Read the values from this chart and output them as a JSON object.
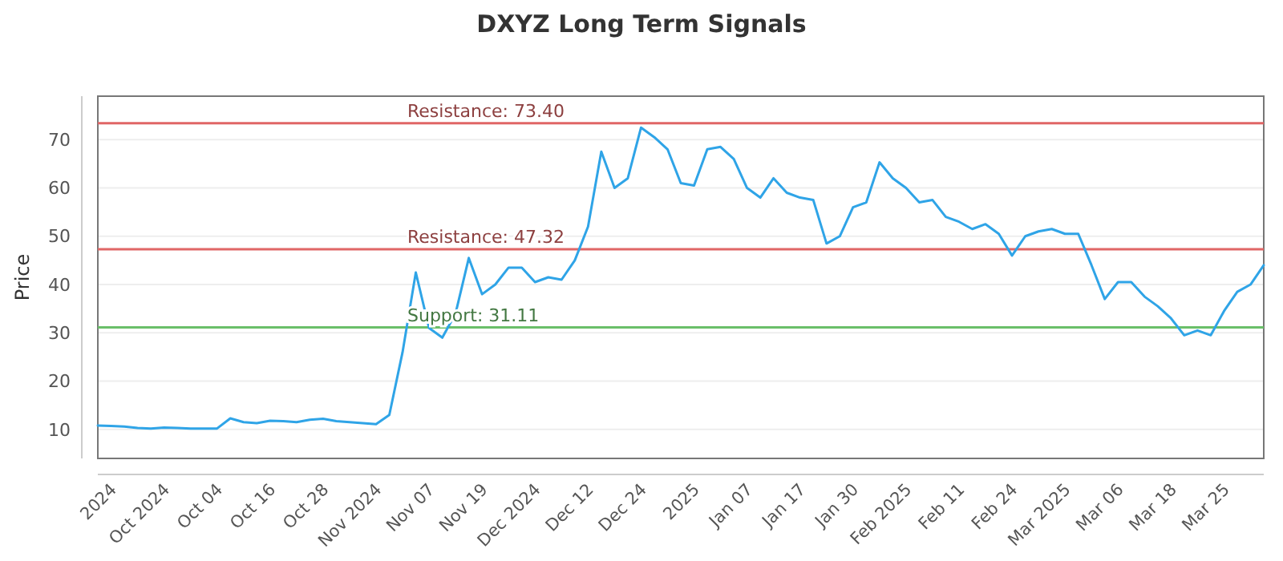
{
  "chart_data": {
    "type": "line",
    "title": "DXYZ Long Term Signals",
    "ylabel": "Price",
    "categories": [
      null,
      "2024",
      null,
      null,
      null,
      "Oct 2024",
      null,
      null,
      null,
      "Oct 04",
      null,
      null,
      null,
      "Oct 16",
      null,
      null,
      null,
      "Oct 28",
      null,
      null,
      null,
      "Nov 2024",
      null,
      null,
      null,
      "Nov 07",
      null,
      null,
      null,
      "Nov 19",
      null,
      null,
      null,
      "Dec 2024",
      null,
      null,
      null,
      "Dec 12",
      null,
      null,
      null,
      "Dec 24",
      null,
      null,
      null,
      "2025",
      null,
      null,
      null,
      "Jan 07",
      null,
      null,
      null,
      "Jan 17",
      null,
      null,
      null,
      "Jan 30",
      null,
      null,
      null,
      "Feb 2025",
      null,
      null,
      null,
      "Feb 11",
      null,
      null,
      null,
      "Feb 24",
      null,
      null,
      null,
      "Mar 2025",
      null,
      null,
      null,
      "Mar 06",
      null,
      null,
      null,
      "Mar 18",
      null,
      null,
      null,
      "Mar 25",
      null,
      null,
      null
    ],
    "series": [
      {
        "color": "#2fa4e7",
        "values": [
          10.8,
          10.7,
          10.6,
          10.3,
          10.2,
          10.4,
          10.3,
          10.2,
          10.2,
          10.2,
          12.3,
          11.5,
          11.3,
          11.8,
          11.7,
          11.5,
          12.0,
          12.2,
          11.7,
          11.5,
          11.3,
          11.1,
          13,
          26,
          42.5,
          31,
          29,
          34,
          45.5,
          38,
          40,
          43.5,
          43.5,
          40.5,
          41.5,
          41,
          45,
          52,
          67.5,
          60,
          62,
          72.5,
          70.5,
          68,
          61,
          60.5,
          68,
          68.5,
          66,
          60,
          58,
          62,
          59,
          58,
          57.5,
          48.5,
          50,
          56,
          57,
          65.3,
          62,
          60,
          57,
          57.5,
          54,
          53,
          51.5,
          52.5,
          50.5,
          46,
          50,
          51,
          51.5,
          50.5,
          50.5,
          44,
          37,
          40.5,
          40.5,
          37.5,
          35.5,
          33,
          29.5,
          30.5,
          29.5,
          34.5,
          38.5,
          40,
          44
        ]
      }
    ],
    "ylim": [
      4,
      79
    ],
    "yticks": [
      10,
      20,
      30,
      40,
      50,
      60,
      70
    ],
    "grid": "y",
    "line_style": "solid",
    "marker": "none",
    "ref_lines": [
      {
        "axis": "y",
        "value": 73.4,
        "label": "Resistance: 73.40",
        "color": "#e06666"
      },
      {
        "axis": "y",
        "value": 47.32,
        "label": "Resistance: 47.32",
        "color": "#e06666"
      },
      {
        "axis": "y",
        "value": 31.11,
        "label": "Support: 31.11",
        "color": "#6abf69"
      }
    ]
  }
}
